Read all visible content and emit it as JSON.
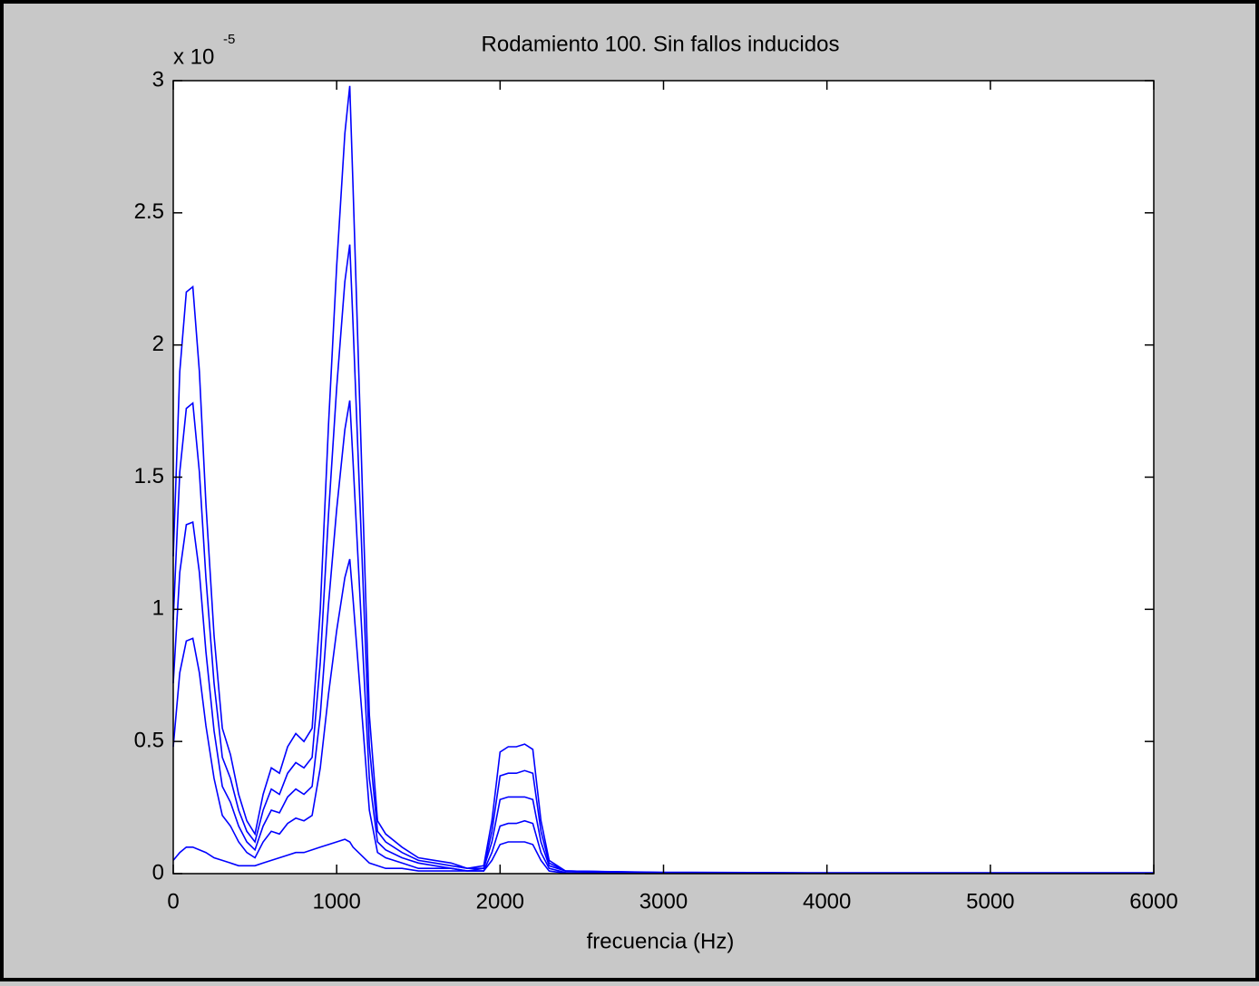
{
  "chart_data": {
    "type": "line",
    "title": "Rodamiento 100. Sin fallos inducidos",
    "x_label": "frecuencia (Hz)",
    "y_multiplier": "x 10",
    "y_multiplier_exponent": "-5",
    "x": [
      0,
      40,
      80,
      120,
      160,
      200,
      250,
      300,
      350,
      400,
      450,
      500,
      550,
      600,
      650,
      700,
      750,
      800,
      850,
      900,
      950,
      1000,
      1050,
      1080,
      1100,
      1150,
      1200,
      1250,
      1300,
      1400,
      1500,
      1600,
      1700,
      1800,
      1900,
      1950,
      2000,
      2050,
      2100,
      2150,
      2200,
      2250,
      2300,
      2400,
      3000,
      4000,
      5000,
      6000
    ],
    "series": [
      {
        "color": "#0000ff",
        "values": [
          1.2,
          1.9,
          2.2,
          2.22,
          1.9,
          1.4,
          0.9,
          0.55,
          0.45,
          0.3,
          0.2,
          0.15,
          0.3,
          0.4,
          0.38,
          0.48,
          0.53,
          0.5,
          0.55,
          1.0,
          1.7,
          2.3,
          2.8,
          2.98,
          2.6,
          1.6,
          0.6,
          0.2,
          0.15,
          0.1,
          0.06,
          0.05,
          0.04,
          0.02,
          0.03,
          0.2,
          0.46,
          0.48,
          0.48,
          0.49,
          0.47,
          0.2,
          0.05,
          0.01,
          0.005,
          0.003,
          0.003,
          0.003
        ]
      },
      {
        "color": "#0000ff",
        "values": [
          0.96,
          1.52,
          1.76,
          1.78,
          1.52,
          1.12,
          0.72,
          0.44,
          0.36,
          0.24,
          0.16,
          0.12,
          0.24,
          0.32,
          0.3,
          0.38,
          0.42,
          0.4,
          0.44,
          0.8,
          1.36,
          1.84,
          2.24,
          2.38,
          2.08,
          1.28,
          0.48,
          0.16,
          0.12,
          0.08,
          0.05,
          0.04,
          0.03,
          0.02,
          0.02,
          0.16,
          0.37,
          0.38,
          0.38,
          0.39,
          0.38,
          0.16,
          0.04,
          0.01,
          0.004,
          0.002,
          0.002,
          0.002
        ]
      },
      {
        "color": "#0000ff",
        "values": [
          0.72,
          1.14,
          1.32,
          1.33,
          1.14,
          0.84,
          0.54,
          0.33,
          0.27,
          0.18,
          0.12,
          0.09,
          0.18,
          0.24,
          0.23,
          0.29,
          0.32,
          0.3,
          0.33,
          0.6,
          1.02,
          1.38,
          1.68,
          1.79,
          1.56,
          0.96,
          0.36,
          0.12,
          0.09,
          0.06,
          0.04,
          0.03,
          0.02,
          0.01,
          0.02,
          0.12,
          0.28,
          0.29,
          0.29,
          0.29,
          0.28,
          0.12,
          0.03,
          0.01,
          0.003,
          0.002,
          0.002,
          0.002
        ]
      },
      {
        "color": "#0000ff",
        "values": [
          0.48,
          0.76,
          0.88,
          0.89,
          0.76,
          0.56,
          0.36,
          0.22,
          0.18,
          0.12,
          0.08,
          0.06,
          0.12,
          0.16,
          0.15,
          0.19,
          0.21,
          0.2,
          0.22,
          0.4,
          0.68,
          0.92,
          1.12,
          1.19,
          1.04,
          0.64,
          0.24,
          0.08,
          0.06,
          0.04,
          0.02,
          0.02,
          0.02,
          0.01,
          0.01,
          0.08,
          0.18,
          0.19,
          0.19,
          0.2,
          0.19,
          0.08,
          0.02,
          0.004,
          0.002,
          0.001,
          0.001,
          0.001
        ]
      },
      {
        "color": "#0000ff",
        "values": [
          0.05,
          0.08,
          0.1,
          0.1,
          0.09,
          0.08,
          0.06,
          0.05,
          0.04,
          0.03,
          0.03,
          0.03,
          0.04,
          0.05,
          0.06,
          0.07,
          0.08,
          0.08,
          0.09,
          0.1,
          0.11,
          0.12,
          0.13,
          0.12,
          0.1,
          0.07,
          0.04,
          0.03,
          0.02,
          0.02,
          0.01,
          0.01,
          0.01,
          0.01,
          0.01,
          0.05,
          0.11,
          0.12,
          0.12,
          0.12,
          0.11,
          0.05,
          0.01,
          0.002,
          0.001,
          0.001,
          0.001,
          0.001
        ]
      }
    ],
    "xlim": [
      0,
      6000
    ],
    "xticks": [
      0,
      1000,
      2000,
      3000,
      4000,
      5000,
      6000
    ],
    "ylim": [
      0,
      3
    ],
    "yticks": [
      0,
      0.5,
      1,
      1.5,
      2,
      2.5,
      3
    ],
    "grid": false
  }
}
